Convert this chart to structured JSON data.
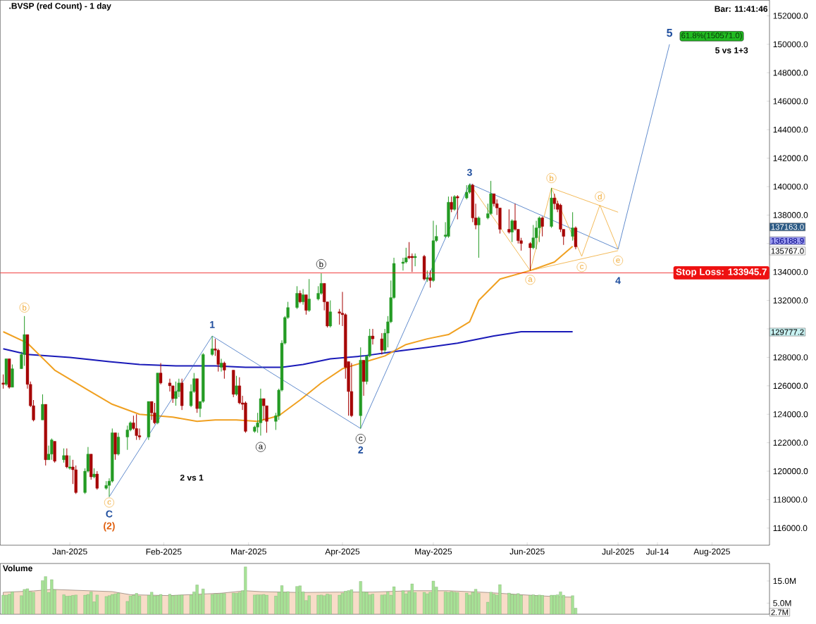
{
  "chart_data": [
    {
      "type": "candlestick",
      "title": ".BVSP (red Count) - 1 day",
      "x": [
        "2024-12-10",
        "2024-12-11",
        "2024-12-12",
        "2024-12-13",
        "2024-12-16",
        "2024-12-17",
        "2024-12-18",
        "2024-12-19",
        "2024-12-20",
        "2024-12-23",
        "2024-12-24",
        "2024-12-25",
        "2024-12-26",
        "2024-12-27",
        "2024-12-30",
        "2024-12-31",
        "2025-01-01",
        "2025-01-02",
        "2025-01-03",
        "2025-01-06",
        "2025-01-07",
        "2025-01-08",
        "2025-01-09",
        "2025-01-10",
        "2025-01-13",
        "2025-01-14",
        "2025-01-15",
        "2025-01-16",
        "2025-01-17",
        "2025-01-20",
        "2025-01-21",
        "2025-01-22",
        "2025-01-23",
        "2025-01-24",
        "2025-01-27",
        "2025-01-28",
        "2025-01-29",
        "2025-01-30",
        "2025-01-31",
        "2025-02-03",
        "2025-02-04",
        "2025-02-05",
        "2025-02-06",
        "2025-02-07",
        "2025-02-10",
        "2025-02-11",
        "2025-02-12",
        "2025-02-13",
        "2025-02-14",
        "2025-02-17",
        "2025-02-18",
        "2025-02-19",
        "2025-02-20",
        "2025-02-21",
        "2025-02-24",
        "2025-02-25",
        "2025-02-26",
        "2025-02-27",
        "2025-02-28",
        "2025-03-03",
        "2025-03-04",
        "2025-03-05",
        "2025-03-06",
        "2025-03-07",
        "2025-03-10",
        "2025-03-11",
        "2025-03-12",
        "2025-03-13",
        "2025-03-14",
        "2025-03-17",
        "2025-03-18",
        "2025-03-19",
        "2025-03-20",
        "2025-03-21",
        "2025-03-24",
        "2025-03-25",
        "2025-03-26",
        "2025-03-27",
        "2025-03-28",
        "2025-03-31",
        "2025-04-01",
        "2025-04-02",
        "2025-04-03",
        "2025-04-04",
        "2025-04-07",
        "2025-04-08",
        "2025-04-09",
        "2025-04-10",
        "2025-04-11",
        "2025-04-14",
        "2025-04-15",
        "2025-04-16",
        "2025-04-17",
        "2025-04-18",
        "2025-04-21",
        "2025-04-22",
        "2025-04-23",
        "2025-04-24",
        "2025-04-25",
        "2025-04-28",
        "2025-04-29",
        "2025-04-30",
        "2025-05-01",
        "2025-05-02",
        "2025-05-05",
        "2025-05-06",
        "2025-05-07",
        "2025-05-08",
        "2025-05-09",
        "2025-05-12",
        "2025-05-13",
        "2025-05-14",
        "2025-05-15",
        "2025-05-16",
        "2025-05-19",
        "2025-05-20",
        "2025-05-21",
        "2025-05-22",
        "2025-05-23",
        "2025-05-26",
        "2025-05-27",
        "2025-05-28",
        "2025-05-29",
        "2025-05-30",
        "2025-06-02",
        "2025-06-03",
        "2025-06-04",
        "2025-06-05",
        "2025-06-06",
        "2025-06-09",
        "2025-06-10",
        "2025-06-11",
        "2025-06-12",
        "2025-06-13",
        "2025-06-16",
        "2025-06-17"
      ],
      "ohlc": [
        [
          126200,
          126800,
          125800,
          126100
        ],
        [
          126100,
          127900,
          126000,
          127900
        ],
        [
          127900,
          127900,
          125800,
          125900
        ],
        [
          125900,
          127500,
          125900,
          127200
        ],
        [
          127200,
          128400,
          127200,
          128200
        ],
        [
          128200,
          130900,
          127400,
          129600
        ],
        [
          129600,
          129600,
          125800,
          126100
        ],
        [
          126100,
          126300,
          124500,
          124600
        ],
        [
          124600,
          125000,
          123500,
          123600
        ],
        [
          123600,
          125400,
          123600,
          124700
        ],
        [
          124700,
          124700,
          120400,
          120800
        ],
        [
          120800,
          121800,
          120800,
          121200
        ],
        [
          121200,
          122300,
          120800,
          122200
        ],
        [
          122100,
          122100,
          120600,
          120700
        ],
        [
          120800,
          121600,
          120600,
          121100
        ],
        [
          121100,
          121600,
          120200,
          120300
        ],
        [
          120200,
          121100,
          120100,
          120300
        ],
        [
          120300,
          120800,
          119100,
          120100
        ],
        [
          120100,
          120400,
          118400,
          118500
        ],
        [
          118500,
          120200,
          118400,
          120000
        ],
        [
          120000,
          121700,
          119900,
          121200
        ],
        [
          121200,
          121200,
          119400,
          119600
        ],
        [
          119600,
          120200,
          119500,
          119800
        ],
        [
          119800,
          120000,
          118700,
          118800
        ],
        [
          118800,
          119300,
          118700,
          119000
        ],
        [
          119000,
          119500,
          118200,
          119300
        ],
        [
          119300,
          123000,
          119200,
          122700
        ],
        [
          122700,
          122700,
          120800,
          121200
        ],
        [
          121200,
          122700,
          121100,
          122400
        ],
        [
          122400,
          123200,
          121500,
          122900
        ],
        [
          122900,
          123500,
          122800,
          123400
        ],
        [
          123400,
          123900,
          122900,
          123000
        ],
        [
          123000,
          124000,
          122200,
          122500
        ],
        [
          122500,
          123000,
          122200,
          122400
        ],
        [
          122400,
          124900,
          122200,
          124900
        ],
        [
          124900,
          124900,
          123600,
          124100
        ],
        [
          124100,
          124800,
          123300,
          123400
        ],
        [
          123400,
          126900,
          123300,
          126900
        ],
        [
          126900,
          127600,
          126100,
          126200
        ],
        [
          126200,
          126500,
          125600,
          126000
        ],
        [
          126000,
          126000,
          124800,
          125100
        ],
        [
          125100,
          126300,
          124600,
          125600
        ],
        [
          125600,
          126500,
          125200,
          126200
        ],
        [
          126200,
          126500,
          124300,
          124600
        ],
        [
          124600,
          126100,
          124500,
          125600
        ],
        [
          125600,
          126900,
          125500,
          126500
        ],
        [
          126500,
          126500,
          124100,
          124400
        ],
        [
          124400,
          124900,
          123800,
          124900
        ],
        [
          124900,
          128300,
          124800,
          128200
        ],
        [
          128200,
          129500,
          128100,
          128600
        ],
        [
          128600,
          129300,
          128100,
          128500
        ],
        [
          128500,
          128600,
          127000,
          127500
        ],
        [
          127300,
          127900,
          127000,
          127600
        ],
        [
          127600,
          127700,
          126500,
          127100
        ],
        [
          127100,
          127100,
          125200,
          125400
        ],
        [
          125400,
          126700,
          125300,
          126000
        ],
        [
          126000,
          126600,
          124700,
          124800
        ],
        [
          124800,
          125300,
          124300,
          124700
        ],
        [
          124800,
          124900,
          122700,
          122800
        ],
        [
          122800,
          123200,
          122700,
          123100
        ],
        [
          123100,
          124100,
          122700,
          123400
        ],
        [
          123400,
          125800,
          122500,
          125100
        ],
        [
          125100,
          125100,
          123600,
          124600
        ],
        [
          124600,
          124600,
          122700,
          123500
        ],
        [
          123500,
          124100,
          122900,
          123900
        ],
        [
          123900,
          125800,
          123600,
          125700
        ],
        [
          125700,
          129200,
          125600,
          129000
        ],
        [
          129000,
          130900,
          128900,
          130800
        ],
        [
          130800,
          131900,
          130700,
          131500
        ],
        [
          131500,
          133000,
          131400,
          132500
        ],
        [
          132500,
          132700,
          131800,
          131900
        ],
        [
          131900,
          132800,
          131700,
          132400
        ],
        [
          132400,
          132400,
          131000,
          131300
        ],
        [
          131300,
          133500,
          131200,
          132100
        ],
        [
          132100,
          133000,
          132000,
          132500
        ],
        [
          132500,
          133900,
          132400,
          133200
        ],
        [
          133200,
          133200,
          131300,
          131900
        ],
        [
          131900,
          131900,
          130100,
          130200
        ],
        [
          130200,
          132000,
          130100,
          131200
        ],
        [
          131200,
          131400,
          130300,
          131100
        ],
        [
          131100,
          132600,
          130200,
          131000
        ],
        [
          131000,
          131100,
          126500,
          127300
        ],
        [
          127700,
          127700,
          123900,
          125600
        ],
        [
          125600,
          127600,
          123800,
          123900
        ],
        [
          123900,
          128700,
          123000,
          127800
        ],
        [
          127800,
          127800,
          125300,
          126300
        ],
        [
          126300,
          128100,
          126100,
          128100
        ],
        [
          128100,
          130000,
          128000,
          129500
        ],
        [
          129500,
          130000,
          128900,
          129300
        ],
        [
          129300,
          129700,
          128200,
          128500
        ],
        [
          128500,
          130000,
          128300,
          129700
        ],
        [
          129700,
          130900,
          128700,
          130500
        ],
        [
          130500,
          133400,
          130400,
          132200
        ],
        [
          132200,
          135000,
          132100,
          134600
        ],
        [
          134600,
          135000,
          134100,
          134700
        ],
        [
          134700,
          135700,
          134600,
          135000
        ],
        [
          135100,
          136100,
          134900,
          135000
        ],
        [
          135100,
          135300,
          134000,
          135000
        ],
        [
          135000,
          135300,
          134400,
          135100
        ],
        [
          135100,
          135200,
          133400,
          133500
        ],
        [
          133500,
          134100,
          133300,
          133600
        ],
        [
          133600,
          134100,
          132900,
          133400
        ],
        [
          133400,
          137600,
          133300,
          136200
        ],
        [
          136200,
          137300,
          136100,
          136500
        ],
        [
          136500,
          137500,
          136400,
          136600
        ],
        [
          136500,
          139300,
          136400,
          138900
        ],
        [
          138900,
          139300,
          138200,
          138400
        ],
        [
          138400,
          139400,
          138300,
          139300
        ],
        [
          139300,
          139400,
          137700,
          139200
        ],
        [
          139200,
          140100,
          139100,
          139600
        ],
        [
          139600,
          140200,
          139500,
          140100
        ],
        [
          140100,
          140200,
          137500,
          137800
        ],
        [
          137800,
          138800,
          137000,
          137300
        ],
        [
          137300,
          137900,
          135000,
          137800
        ],
        [
          137800,
          138800,
          137700,
          138100
        ],
        [
          138100,
          140400,
          138000,
          139500
        ],
        [
          139500,
          139500,
          138600,
          138800
        ],
        [
          138800,
          139100,
          138000,
          138500
        ],
        [
          138500,
          138500,
          136700,
          137000
        ],
        [
          137000,
          138400,
          136700,
          136800
        ],
        [
          136800,
          137700,
          136100,
          137600
        ],
        [
          137600,
          138800,
          136900,
          137000
        ],
        [
          137000,
          137000,
          136000,
          136200
        ],
        [
          136200,
          136400,
          135500,
          136000
        ],
        [
          136000,
          136100,
          134100,
          135700
        ],
        [
          135700,
          137300,
          135600,
          136400
        ],
        [
          136400,
          137600,
          135600,
          137100
        ],
        [
          137100,
          137900,
          136100,
          137800
        ],
        [
          137800,
          137900,
          136500,
          137200
        ],
        [
          137200,
          139900,
          137100,
          139200
        ],
        [
          139200,
          139500,
          138400,
          138800
        ],
        [
          138800,
          139000,
          138200,
          138400
        ],
        [
          138700,
          138800,
          136800,
          137000
        ],
        [
          137000,
          137000,
          135900,
          136500
        ],
        [
          136500,
          138200,
          136200,
          137100
        ],
        [
          137100,
          137200,
          135600,
          135767
        ]
      ],
      "colors": [
        "#a50000",
        "#239b23",
        "#a50000",
        "#239b23",
        "#239b23",
        "#239b23",
        "#a50000",
        "#a50000",
        "#a50000",
        "#239b23",
        "#a50000",
        "#239b23",
        "#239b23",
        "#a50000",
        "#239b23",
        "#a50000",
        "#239b23",
        "#a50000",
        "#a50000",
        "#239b23",
        "#239b23",
        "#a50000",
        "#239b23",
        "#a50000",
        "#239b23",
        "#239b23",
        "#239b23",
        "#a50000",
        "#239b23",
        "#239b23",
        "#239b23",
        "#a50000",
        "#a50000",
        "#a50000",
        "#239b23",
        "#a50000",
        "#a50000",
        "#239b23",
        "#a50000",
        "#a50000",
        "#a50000",
        "#239b23",
        "#239b23",
        "#a50000",
        "#239b23",
        "#239b23",
        "#a50000",
        "#239b23",
        "#239b23",
        "#239b23",
        "#a50000",
        "#a50000",
        "#239b23",
        "#a50000",
        "#a50000",
        "#239b23",
        "#a50000",
        "#a50000",
        "#a50000",
        "#239b23",
        "#239b23",
        "#239b23",
        "#a50000",
        "#a50000",
        "#239b23",
        "#239b23",
        "#239b23",
        "#239b23",
        "#239b23",
        "#239b23",
        "#a50000",
        "#239b23",
        "#a50000",
        "#239b23",
        "#239b23",
        "#239b23",
        "#a50000",
        "#a50000",
        "#239b23",
        "#a50000",
        "#a50000",
        "#a50000",
        "#a50000",
        "#a50000",
        "#239b23",
        "#a50000",
        "#239b23",
        "#239b23",
        "#a50000",
        "#a50000",
        "#239b23",
        "#239b23",
        "#239b23",
        "#239b23",
        "#239b23",
        "#239b23",
        "#a50000",
        "#a50000",
        "#239b23",
        "#a50000",
        "#239b23",
        "#a50000",
        "#239b23",
        "#239b23",
        "#239b23",
        "#239b23",
        "#a50000",
        "#239b23",
        "#a50000",
        "#239b23",
        "#239b23",
        "#a50000",
        "#a50000",
        "#239b23",
        "#239b23",
        "#239b23",
        "#a50000",
        "#a50000",
        "#a50000",
        "#a50000",
        "#239b23",
        "#a50000",
        "#a50000",
        "#a50000",
        "#a50000",
        "#239b23",
        "#239b23",
        "#239b23",
        "#a50000",
        "#239b23",
        "#a50000",
        "#a50000",
        "#a50000",
        "#a50000",
        "#239b23",
        "#a50000"
      ],
      "series": [
        {
          "type": "line",
          "color": "#1a1ab8",
          "x": [
            "2024-12-10",
            "2024-12-18",
            "2025-01-01",
            "2025-01-14",
            "2025-01-24",
            "2025-02-05",
            "2025-02-18",
            "2025-02-28",
            "2025-03-12",
            "2025-03-19",
            "2025-03-28",
            "2025-04-08",
            "2025-04-18",
            "2025-04-29",
            "2025-05-09",
            "2025-05-21",
            "2025-05-30",
            "2025-06-10",
            "2025-06-16"
          ],
          "values": [
            128600,
            128200,
            128000,
            127700,
            127500,
            127400,
            127400,
            127300,
            127300,
            127500,
            127900,
            128100,
            128400,
            128700,
            129000,
            129500,
            129800,
            129800,
            129800
          ]
        },
        {
          "type": "line",
          "color": "#f0a020",
          "x": [
            "2024-12-10",
            "2024-12-18",
            "2024-12-27",
            "2025-01-07",
            "2025-01-15",
            "2025-01-24",
            "2025-02-04",
            "2025-02-12",
            "2025-02-18",
            "2025-02-25",
            "2025-03-04",
            "2025-03-11",
            "2025-03-18",
            "2025-03-25",
            "2025-04-01",
            "2025-04-08",
            "2025-04-15",
            "2025-04-22",
            "2025-04-29",
            "2025-05-06",
            "2025-05-13",
            "2025-05-16",
            "2025-05-23",
            "2025-06-02",
            "2025-06-10",
            "2025-06-16"
          ],
          "values": [
            129800,
            129000,
            127100,
            125700,
            124700,
            124000,
            123800,
            123500,
            123600,
            123600,
            123500,
            123900,
            125000,
            126200,
            127200,
            null,
            128100,
            128900,
            129300,
            129600,
            130500,
            132000,
            133500,
            134100,
            134700,
            135800
          ]
        },
        {
          "type": "line",
          "color": "#3a6fc0",
          "x": [
            "2025-01-14",
            "2025-02-17",
            "2025-04-07",
            "2025-05-13",
            "2025-07-01",
            "2025-07-18"
          ],
          "values": [
            118200,
            129500,
            123000,
            140200,
            135600,
            150000
          ]
        },
        {
          "type": "line",
          "color": "#f0a830",
          "x": [
            "2025-05-13",
            "2025-06-02",
            "2025-06-09",
            "2025-06-19",
            "2025-06-25",
            "2025-07-01"
          ],
          "values": [
            140200,
            134100,
            139900,
            135100,
            138700,
            135600
          ]
        },
        {
          "type": "line",
          "color": "#f0a830",
          "x": [
            "2025-06-09",
            "2025-07-01"
          ],
          "values": [
            139900,
            138200
          ]
        },
        {
          "type": "line",
          "color": "#f0a830",
          "x": [
            "2025-06-02",
            "2025-07-01"
          ],
          "values": [
            134100,
            135500
          ]
        }
      ],
      "xlim": [
        "2024-12-09",
        "2025-08-20"
      ],
      "ylim": [
        114800,
        153100
      ],
      "xticks": [
        {
          "value": "2025-01-01",
          "label": "Jan-2025"
        },
        {
          "value": "2025-02-01",
          "label": "Feb-2025"
        },
        {
          "value": "2025-03-01",
          "label": "Mar-2025"
        },
        {
          "value": "2025-04-01",
          "label": "Apr-2025"
        },
        {
          "value": "2025-05-01",
          "label": "May-2025"
        },
        {
          "value": "2025-06-01",
          "label": "Jun-2025"
        },
        {
          "value": "2025-07-01",
          "label": "Jul-2025"
        },
        {
          "value": "2025-07-14",
          "label": "Jul-14"
        },
        {
          "value": "2025-08-01",
          "label": "Aug-2025"
        }
      ],
      "yticks": [
        {
          "value": 116000,
          "label": "116000.0"
        },
        {
          "value": 118000,
          "label": "118000.0"
        },
        {
          "value": 120000,
          "label": "120000.0"
        },
        {
          "value": 122000,
          "label": "122000.0"
        },
        {
          "value": 124000,
          "label": "124000.0"
        },
        {
          "value": 126000,
          "label": "126000.0"
        },
        {
          "value": 128000,
          "label": "128000.0"
        },
        {
          "value": 130000,
          "label": null
        },
        {
          "value": 132000,
          "label": "132000.0"
        },
        {
          "value": 134000,
          "label": "134000.0"
        },
        {
          "value": 136000,
          "label": null
        },
        {
          "value": 138000,
          "label": "138000.0"
        },
        {
          "value": 140000,
          "label": "140000.0"
        },
        {
          "value": 142000,
          "label": "142000.0"
        },
        {
          "value": 144000,
          "label": "144000.0"
        },
        {
          "value": 146000,
          "label": "146000.0"
        },
        {
          "value": 148000,
          "label": "148000.0"
        },
        {
          "value": 150000,
          "label": "150000.0"
        },
        {
          "value": 152000,
          "label": "152000.0"
        }
      ],
      "ref_lines": [
        {
          "axis": "y",
          "value": 133945.7,
          "label": "Stop Loss: 133945.7",
          "color": "#ee1111",
          "line_style": "solid"
        }
      ],
      "annotations": [
        "Bar: 11:41:46",
        "5 vs 1+3",
        "2 vs 1",
        "b",
        "c",
        "C",
        "(2)",
        "1",
        "a",
        "b",
        "c",
        "2",
        "3",
        "a",
        "b",
        "c",
        "d",
        "e",
        "4",
        "5",
        "61.8%(150571.0)",
        "137163.0",
        "136188.9",
        "135767.0",
        "129777.2"
      ]
    },
    {
      "type": "bar",
      "title": "Volume",
      "tick_labels": "y",
      "x": [
        "2024-12-10",
        "2024-12-11",
        "2024-12-12",
        "2024-12-13",
        "2024-12-16",
        "2024-12-17",
        "2024-12-18",
        "2024-12-19",
        "2024-12-20",
        "2024-12-23",
        "2024-12-24",
        "2024-12-25",
        "2024-12-26",
        "2024-12-27",
        "2024-12-30",
        "2024-12-31",
        "2025-01-01",
        "2025-01-02",
        "2025-01-03",
        "2025-01-06",
        "2025-01-07",
        "2025-01-08",
        "2025-01-09",
        "2025-01-10",
        "2025-01-13",
        "2025-01-14",
        "2025-01-15",
        "2025-01-16",
        "2025-01-17",
        "2025-01-20",
        "2025-01-21",
        "2025-01-22",
        "2025-01-23",
        "2025-01-24",
        "2025-01-27",
        "2025-01-28",
        "2025-01-29",
        "2025-01-30",
        "2025-01-31",
        "2025-02-03",
        "2025-02-04",
        "2025-02-05",
        "2025-02-06",
        "2025-02-07",
        "2025-02-10",
        "2025-02-11",
        "2025-02-12",
        "2025-02-13",
        "2025-02-14",
        "2025-02-17",
        "2025-02-18",
        "2025-02-19",
        "2025-02-20",
        "2025-02-21",
        "2025-02-24",
        "2025-02-25",
        "2025-02-26",
        "2025-02-27",
        "2025-02-28",
        "2025-03-03",
        "2025-03-04",
        "2025-03-05",
        "2025-03-06",
        "2025-03-07",
        "2025-03-10",
        "2025-03-11",
        "2025-03-12",
        "2025-03-13",
        "2025-03-14",
        "2025-03-17",
        "2025-03-18",
        "2025-03-19",
        "2025-03-20",
        "2025-03-21",
        "2025-03-24",
        "2025-03-25",
        "2025-03-26",
        "2025-03-27",
        "2025-03-28",
        "2025-03-31",
        "2025-04-01",
        "2025-04-02",
        "2025-04-03",
        "2025-04-04",
        "2025-04-07",
        "2025-04-08",
        "2025-04-09",
        "2025-04-10",
        "2025-04-11",
        "2025-04-14",
        "2025-04-15",
        "2025-04-16",
        "2025-04-17",
        "2025-04-18",
        "2025-04-21",
        "2025-04-22",
        "2025-04-23",
        "2025-04-24",
        "2025-04-25",
        "2025-04-28",
        "2025-04-29",
        "2025-04-30",
        "2025-05-01",
        "2025-05-02",
        "2025-05-05",
        "2025-05-06",
        "2025-05-07",
        "2025-05-08",
        "2025-05-09",
        "2025-05-12",
        "2025-05-13",
        "2025-05-14",
        "2025-05-15",
        "2025-05-16",
        "2025-05-19",
        "2025-05-20",
        "2025-05-21",
        "2025-05-22",
        "2025-05-23",
        "2025-05-26",
        "2025-05-27",
        "2025-05-28",
        "2025-05-29",
        "2025-05-30",
        "2025-06-02",
        "2025-06-03",
        "2025-06-04",
        "2025-06-05",
        "2025-06-06",
        "2025-06-09",
        "2025-06-10",
        "2025-06-11",
        "2025-06-12",
        "2025-06-13",
        "2025-06-16",
        "2025-06-17"
      ],
      "values": [
        8.6,
        8.6,
        9.0,
        10.1,
        8.4,
        11.2,
        11.5,
        10.1,
        9.9,
        15.2,
        17.0,
        9.8,
        15.6,
        11.0,
        8.8,
        8.1,
        8.3,
        8.5,
        8.7,
        8.6,
        8.9,
        10.1,
        5.6,
        8.7,
        8.0,
        8.4,
        8.9,
        9.2,
        9.6,
        5.8,
        8.3,
        8.6,
        9.4,
        8.2,
        8.5,
        10.0,
        8.3,
        8.4,
        8.9,
        9.0,
        8.4,
        8.5,
        8.6,
        8.7,
        8.7,
        10.1,
        13.2,
        8.7,
        11.4,
        8.9,
        9.2,
        9.1,
        9.4,
        9.3,
        9.6,
        9.5,
        9.8,
        10.6,
        21.4,
        8.7,
        8.8,
        8.8,
        8.9,
        8.6,
        8.2,
        10.0,
        12.9,
        9.9,
        10.2,
        12.6,
        12.8,
        10.1,
        6.2,
        8.4,
        8.6,
        8.7,
        8.4,
        9.1,
        8.8,
        8.6,
        9.5,
        10.4,
        10.7,
        11.1,
        14.8,
        10.1,
        9.9,
        8.8,
        9.1,
        8.7,
        8.8,
        10.1,
        8.6,
        12.4,
        10.6,
        9.2,
        10.2,
        13.7,
        9.8,
        9.9,
        9.2,
        10.0,
        15.0,
        12.3,
        10.1,
        9.9,
        10.2,
        10.0,
        9.8,
        9.6,
        8.7,
        9.9,
        11.3,
        9.4,
        5.4,
        10.0,
        9.1,
        8.7,
        13.4,
        9.6,
        9.0,
        8.8,
        9.3,
        8.6,
        8.5,
        8.8,
        8.4,
        8.7,
        8.5,
        8.6,
        8.6,
        8.8,
        10.1,
        8.6,
        8.4,
        2.7
      ],
      "color": "#a6e296",
      "series": [
        {
          "type": "area",
          "color": "#f8dcc8",
          "x": [
            "2024-12-10",
            "2024-12-20",
            "2024-12-26",
            "2025-01-15",
            "2025-01-21",
            "2025-02-03",
            "2025-02-20",
            "2025-02-28",
            "2025-03-05",
            "2025-03-18",
            "2025-03-31",
            "2025-04-11",
            "2025-04-24",
            "2025-05-06",
            "2025-05-19",
            "2025-05-30",
            "2025-06-12",
            "2025-06-16"
          ],
          "values": [
            9.9,
            10.5,
            11.2,
            10.2,
            8.8,
            8.4,
            9.5,
            10.6,
            10.2,
            9.8,
            10.0,
            10.0,
            10.6,
            10.6,
            9.8,
            8.8,
            7.8,
            7.7
          ]
        }
      ],
      "xlim": [
        "2024-12-09",
        "2025-08-20"
      ],
      "ylim": [
        0,
        22.9
      ],
      "yticks": [
        {
          "value": 15,
          "label": "15.0M"
        },
        {
          "value": 5,
          "label": "5.0M"
        }
      ],
      "annotations": [
        "2.7M"
      ]
    }
  ]
}
